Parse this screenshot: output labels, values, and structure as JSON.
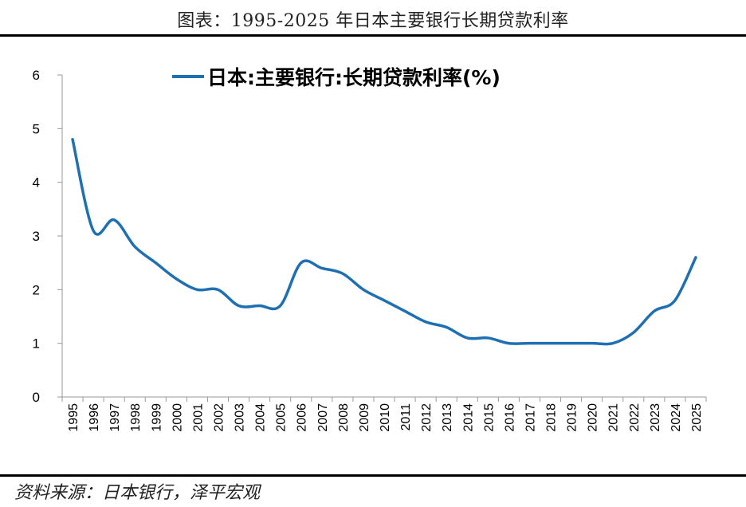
{
  "title": "图表：1995-2025 年日本主要银行长期贷款利率",
  "source": "资料来源：日本银行，泽平宏观",
  "chart_data": {
    "type": "line",
    "legend_position": "top-center",
    "grid": false,
    "ylim": [
      0,
      6
    ],
    "yticks": [
      "0",
      "1",
      "2",
      "3",
      "4",
      "5",
      "6"
    ],
    "x": [
      "1995",
      "1996",
      "1997",
      "1998",
      "1999",
      "2000",
      "2001",
      "2002",
      "2003",
      "2004",
      "2005",
      "2006",
      "2007",
      "2008",
      "2009",
      "2010",
      "2011",
      "2012",
      "2013",
      "2014",
      "2015",
      "2016",
      "2017",
      "2018",
      "2019",
      "2020",
      "2021",
      "2022",
      "2023",
      "2024",
      "2025"
    ],
    "series": [
      {
        "name": "日本:主要银行:长期贷款利率(%)",
        "color": "#1f6fb3",
        "values": [
          4.8,
          3.1,
          3.3,
          2.8,
          2.5,
          2.2,
          2.0,
          2.0,
          1.7,
          1.7,
          1.7,
          2.5,
          2.4,
          2.3,
          2.0,
          1.8,
          1.6,
          1.4,
          1.3,
          1.1,
          1.1,
          1.0,
          1.0,
          1.0,
          1.0,
          1.0,
          1.0,
          1.2,
          1.6,
          1.8,
          2.6
        ]
      }
    ]
  }
}
